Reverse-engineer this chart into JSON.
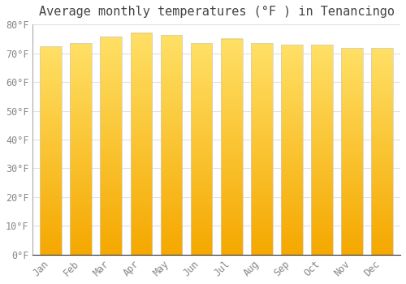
{
  "title": "Average monthly temperatures (°F ) in Tenancingo",
  "months": [
    "Jan",
    "Feb",
    "Mar",
    "Apr",
    "May",
    "Jun",
    "Jul",
    "Aug",
    "Sep",
    "Oct",
    "Nov",
    "Dec"
  ],
  "values": [
    72.3,
    73.5,
    75.7,
    77.0,
    76.3,
    73.5,
    75.0,
    73.5,
    73.0,
    73.0,
    71.8,
    71.8
  ],
  "bar_color_bottom": "#F5A800",
  "bar_color_top": "#FFE066",
  "ylim": [
    0,
    80
  ],
  "yticks": [
    0,
    10,
    20,
    30,
    40,
    50,
    60,
    70,
    80
  ],
  "ytick_labels": [
    "0°F",
    "10°F",
    "20°F",
    "30°F",
    "40°F",
    "50°F",
    "60°F",
    "70°F",
    "80°F"
  ],
  "background_color": "#FFFFFF",
  "grid_color": "#E0E0E0",
  "title_fontsize": 11,
  "tick_fontsize": 8.5,
  "tick_color": "#888888"
}
